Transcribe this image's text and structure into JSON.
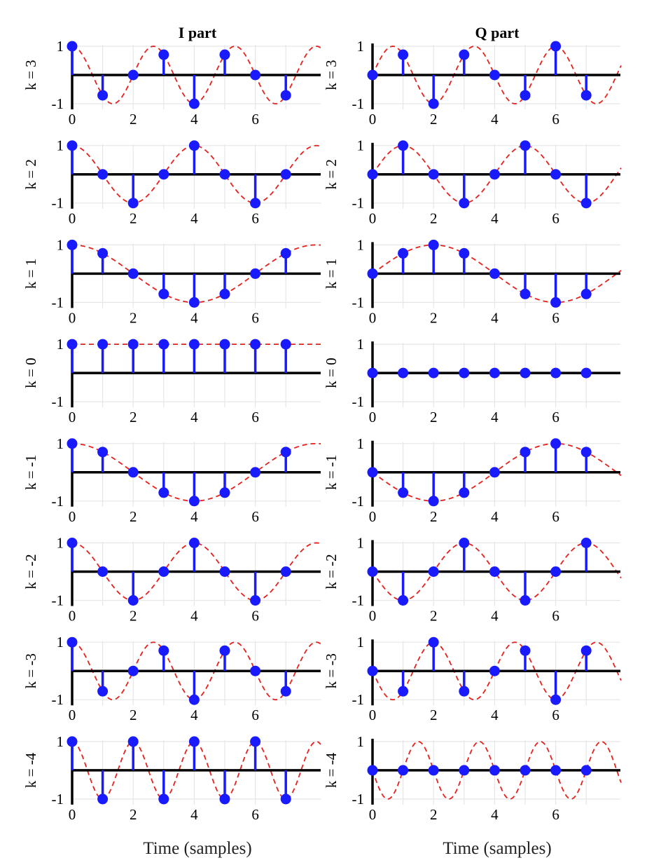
{
  "figure": {
    "columns": [
      {
        "key": "i",
        "title": "I part"
      },
      {
        "key": "q",
        "title": "Q part"
      }
    ],
    "xlabel": "Time (samples)"
  },
  "chart_data": {
    "type": "stem",
    "n_samples": 8,
    "sample_indices": [
      0,
      1,
      2,
      3,
      4,
      5,
      6,
      7
    ],
    "xticks": [
      0,
      2,
      4,
      6
    ],
    "ylim": [
      -1,
      1
    ],
    "yticks": [
      1,
      -1
    ],
    "grid": true,
    "colors": {
      "stem": "#1a1aff",
      "curve": "#e8201c",
      "axis": "#000000",
      "grid": "#e6e6e6"
    },
    "rows": [
      {
        "ylabel": "k = 3",
        "i": [
          1,
          -0.707,
          0,
          0.707,
          -1,
          0.707,
          0,
          -0.707
        ],
        "q": [
          0,
          0.707,
          -1,
          0.707,
          0,
          -0.707,
          1,
          -0.707
        ]
      },
      {
        "ylabel": "k = 2",
        "i": [
          1,
          0,
          -1,
          0,
          1,
          0,
          -1,
          0
        ],
        "q": [
          0,
          1,
          0,
          -1,
          0,
          1,
          0,
          -1
        ]
      },
      {
        "ylabel": "k = 1",
        "i": [
          1,
          0.707,
          0,
          -0.707,
          -1,
          -0.707,
          0,
          0.707
        ],
        "q": [
          0,
          0.707,
          1,
          0.707,
          0,
          -0.707,
          -1,
          -0.707
        ]
      },
      {
        "ylabel": "k = 0",
        "i": [
          1,
          1,
          1,
          1,
          1,
          1,
          1,
          1
        ],
        "q": [
          0,
          0,
          0,
          0,
          0,
          0,
          0,
          0
        ]
      },
      {
        "ylabel": "k = -1",
        "i": [
          1,
          0.707,
          0,
          -0.707,
          -1,
          -0.707,
          0,
          0.707
        ],
        "q": [
          0,
          -0.707,
          -1,
          -0.707,
          0,
          0.707,
          1,
          0.707
        ]
      },
      {
        "ylabel": "k = -2",
        "i": [
          1,
          0,
          -1,
          0,
          1,
          0,
          -1,
          0
        ],
        "q": [
          0,
          -1,
          0,
          1,
          0,
          -1,
          0,
          1
        ]
      },
      {
        "ylabel": "k = -3",
        "i": [
          1,
          -0.707,
          0,
          0.707,
          -1,
          0.707,
          0,
          -0.707
        ],
        "q": [
          0,
          -0.707,
          1,
          -0.707,
          0,
          0.707,
          -1,
          0.707
        ]
      },
      {
        "ylabel": "k = -4",
        "i": [
          1,
          -1,
          1,
          -1,
          1,
          -1,
          1,
          -1
        ],
        "q": [
          0,
          0,
          0,
          0,
          0,
          0,
          0,
          0
        ]
      }
    ]
  }
}
